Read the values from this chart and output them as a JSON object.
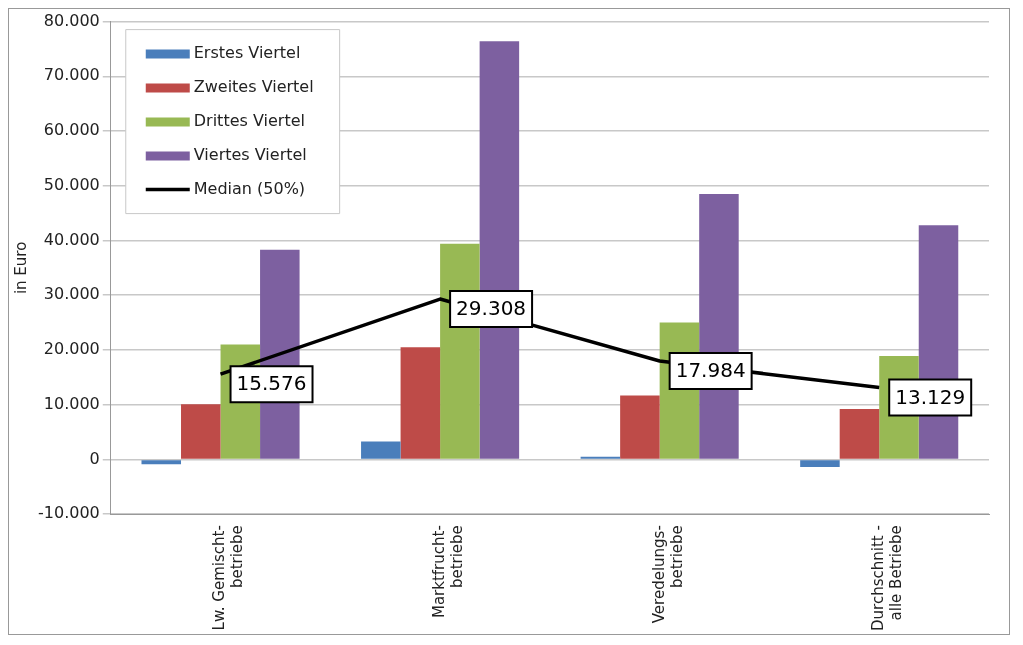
{
  "chart_data": {
    "type": "bar",
    "ylabel": "in Euro",
    "categories": [
      "Lw. Gemischt-\nbetriebe",
      "Marktfrucht-\nbetriebe",
      "Veredelungs-\nbetriebe",
      "Durchschnitt -\nalle Betriebe"
    ],
    "series": [
      {
        "name": "Erstes Viertel",
        "color": "#4a7ebb",
        "values": [
          -900,
          3300,
          500,
          -1400
        ]
      },
      {
        "name": "Zweites Viertel",
        "color": "#be4b48",
        "values": [
          10100,
          20500,
          11700,
          9200
        ]
      },
      {
        "name": "Drittes Viertel",
        "color": "#98b954",
        "values": [
          21000,
          39400,
          25000,
          18900
        ]
      },
      {
        "name": "Viertes Viertel",
        "color": "#7d60a0",
        "values": [
          38300,
          76400,
          48500,
          42800
        ]
      },
      {
        "name": "Median (50%)",
        "type": "line",
        "color": "#000000",
        "marker": "none",
        "values": [
          15576,
          29308,
          17984,
          13129
        ],
        "value_labels": [
          "15.576",
          "29.308",
          "17.984",
          "13.129"
        ]
      }
    ],
    "ylim": [
      -10000,
      80000
    ],
    "yticks": [
      {
        "value": -10000,
        "label": "-10.000"
      },
      {
        "value": 0,
        "label": "0"
      },
      {
        "value": 10000,
        "label": "10.000"
      },
      {
        "value": 20000,
        "label": "20.000"
      },
      {
        "value": 30000,
        "label": "30.000"
      },
      {
        "value": 40000,
        "label": "40.000"
      },
      {
        "value": 50000,
        "label": "50.000"
      },
      {
        "value": 60000,
        "label": "60.000"
      },
      {
        "value": 70000,
        "label": "70.000"
      },
      {
        "value": 80000,
        "label": "80.000"
      }
    ],
    "grid": "y",
    "legend": "top left"
  }
}
